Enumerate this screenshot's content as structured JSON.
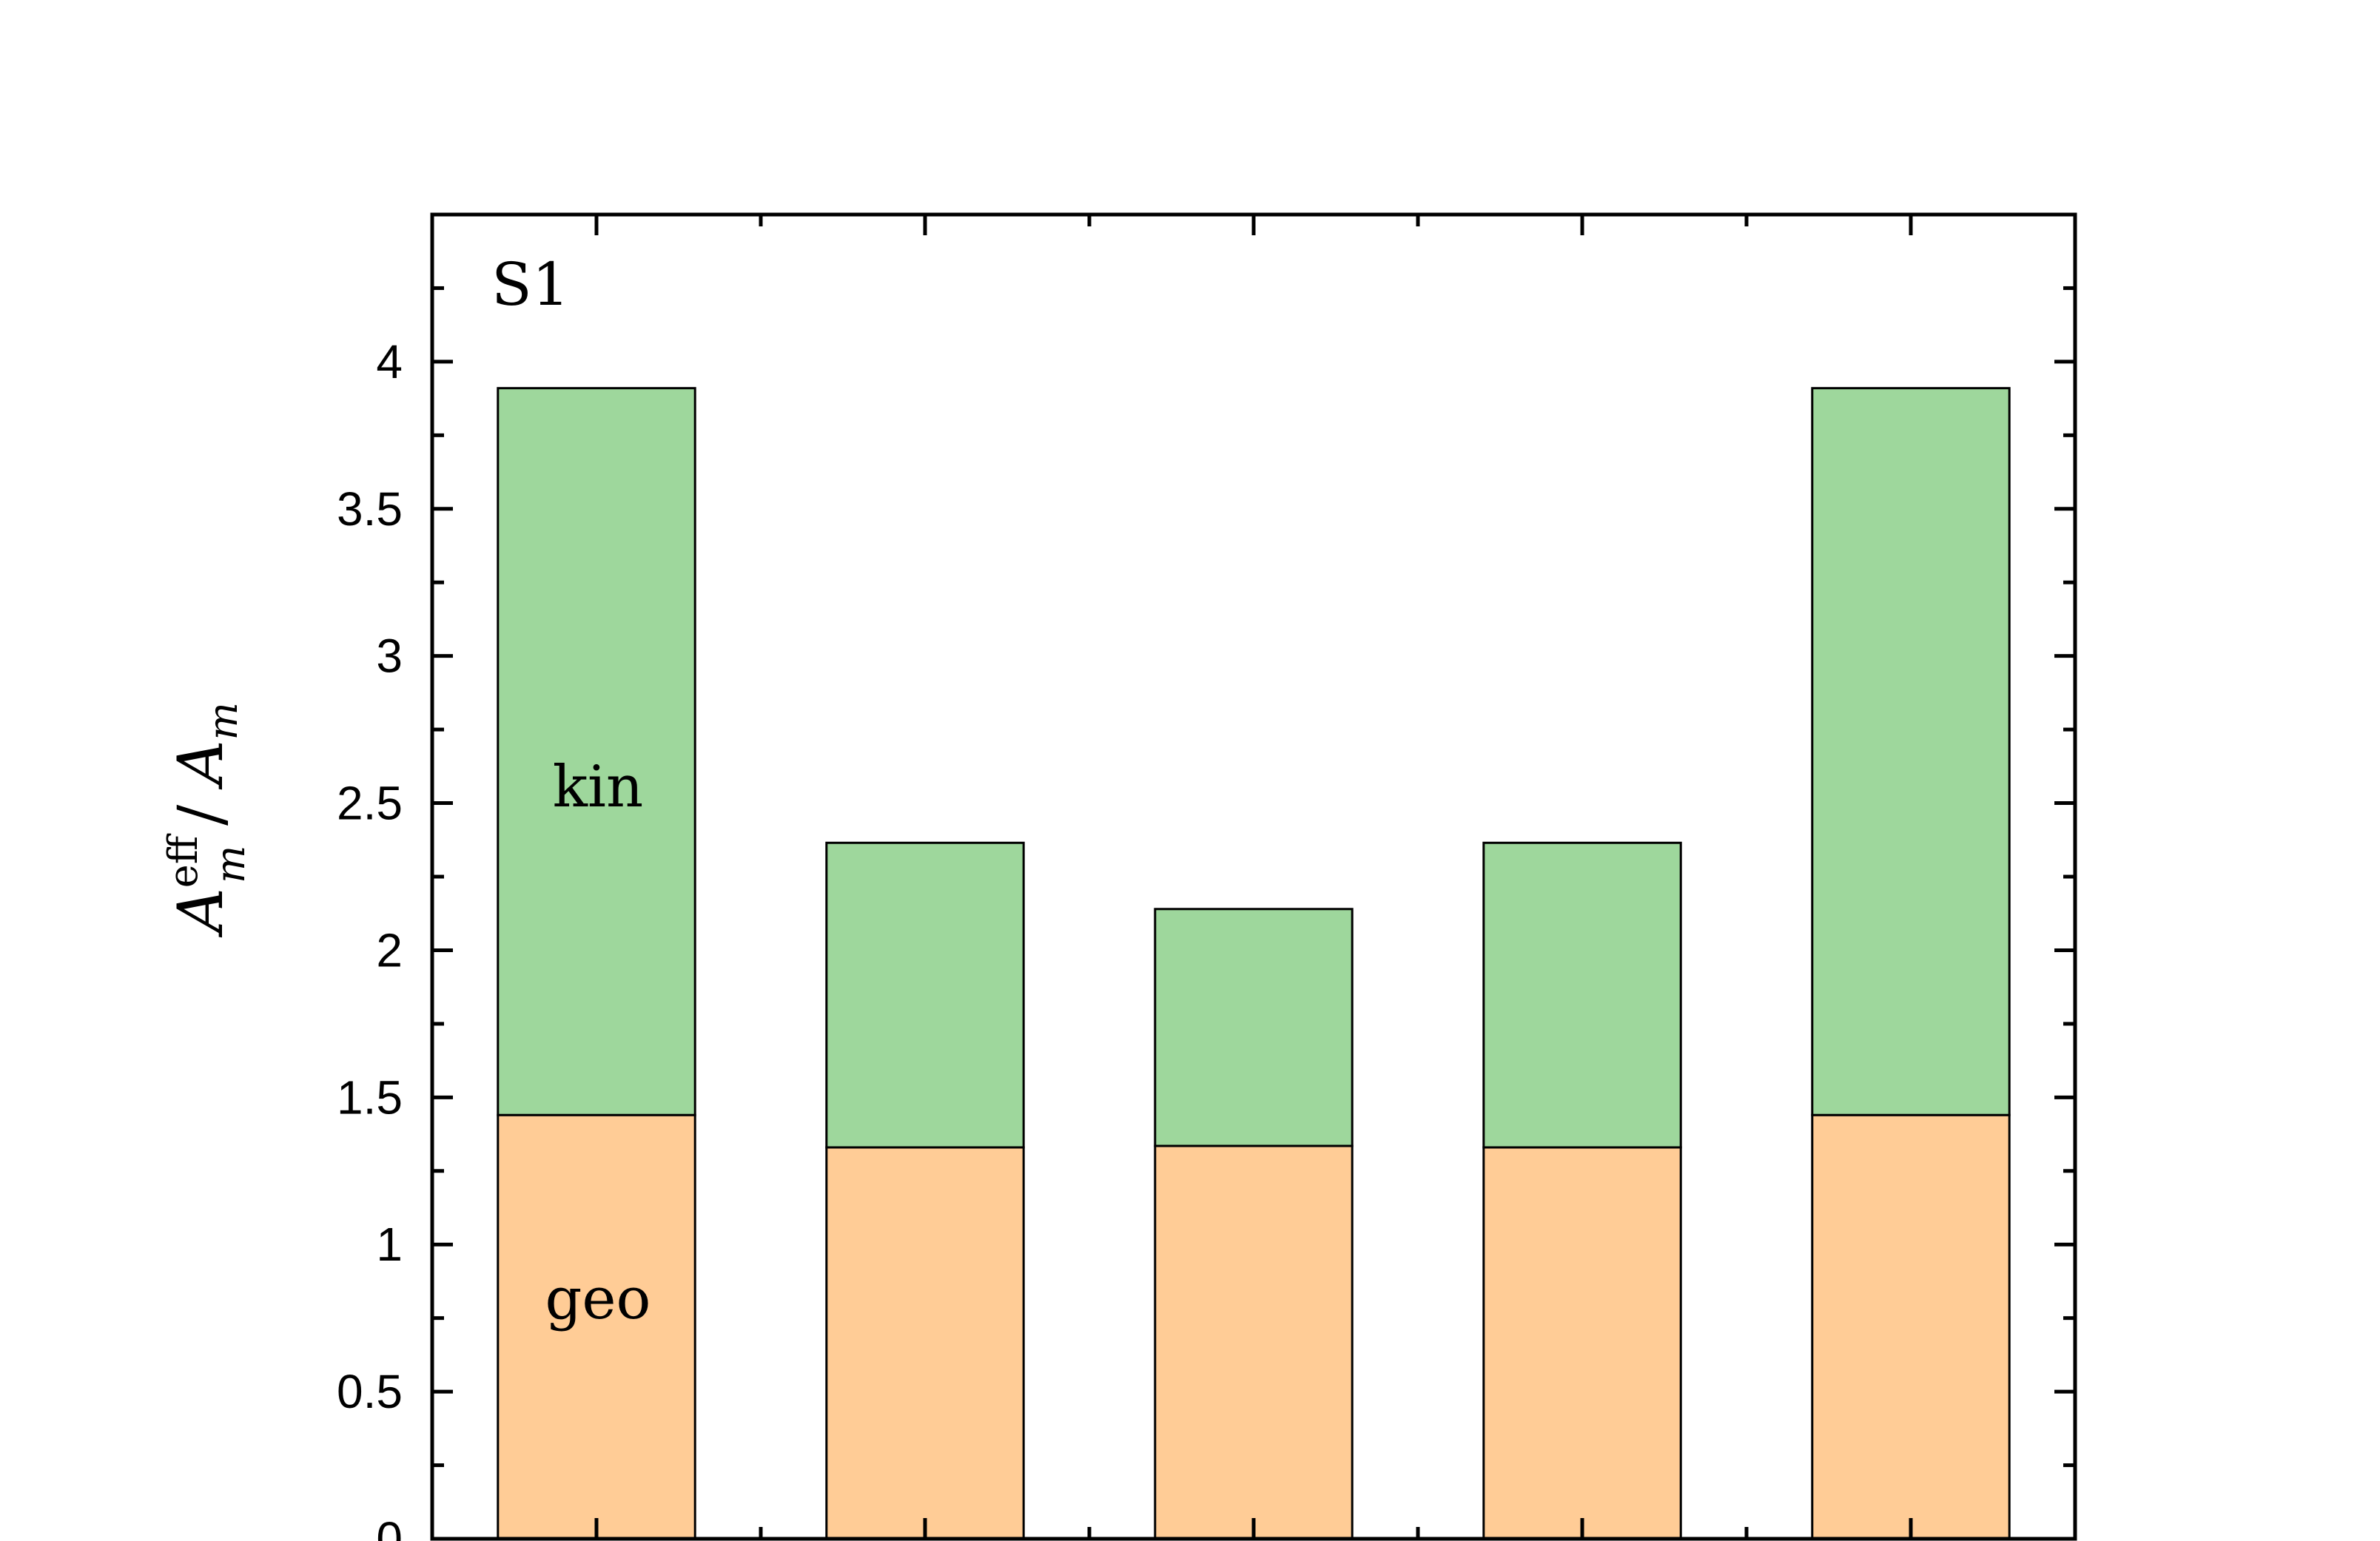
{
  "chart_data": {
    "type": "bar",
    "stacked": true,
    "panel_label": "S1",
    "xlabel": "",
    "ylabel_parts": {
      "main": "A",
      "sup": "eff",
      "sub": "m",
      "sep": " / ",
      "main2": "A",
      "sub2": "m"
    },
    "ylim": [
      0,
      4.5
    ],
    "yticks": [
      0,
      0.5,
      1,
      1.5,
      2,
      2.5,
      3,
      3.5,
      4
    ],
    "ytick_labels": [
      "0",
      "0.5",
      "1",
      "1.5",
      "2",
      "2.5",
      "3",
      "3.5",
      "4"
    ],
    "categories": [
      "",
      "",
      "",
      "",
      ""
    ],
    "series": [
      {
        "name": "geo",
        "values": [
          1.44,
          1.33,
          1.335,
          1.33,
          1.44
        ],
        "color": "#FFCC96"
      },
      {
        "name": "kin",
        "values": [
          2.47,
          1.035,
          0.805,
          1.035,
          2.47
        ],
        "color": "#9ED79C"
      }
    ],
    "annotations": [
      "kin",
      "geo"
    ],
    "grid": false,
    "legend": "none"
  }
}
